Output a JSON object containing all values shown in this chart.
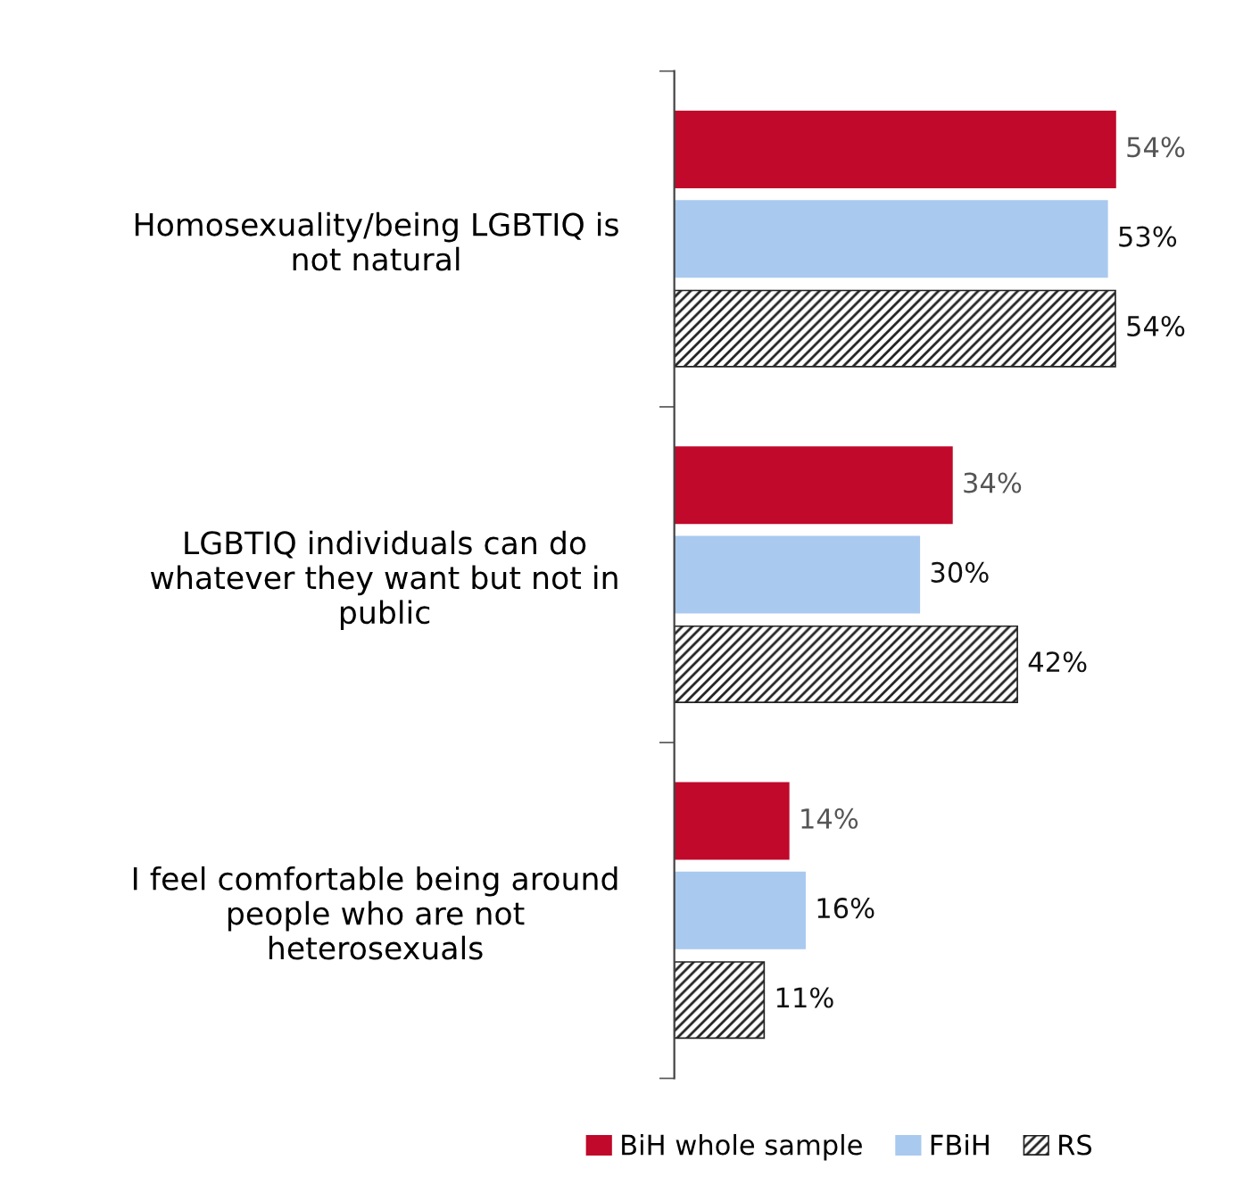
{
  "chart_data": {
    "type": "bar",
    "orientation": "horizontal",
    "categories": [
      "Homosexuality/being LGBTIQ is not natural",
      "LGBTIQ individuals can do whatever they want but not in public",
      "I feel comfortable being around people who are not heterosexuals"
    ],
    "series": [
      {
        "name": "BiH whole sample",
        "color": "#c0092b",
        "values": [
          54,
          34,
          14
        ],
        "value_labels": [
          "54%",
          "34%",
          "14%"
        ]
      },
      {
        "name": "FBiH",
        "color": "#a9c9ef",
        "values": [
          53,
          30,
          16
        ],
        "value_labels": [
          "53%",
          "30%",
          "16%"
        ]
      },
      {
        "name": "RS",
        "color": "#222222",
        "values": [
          54,
          42,
          11
        ],
        "value_labels": [
          "54%",
          "42%",
          "11%"
        ]
      }
    ],
    "tick_labels": "y",
    "grid": false,
    "legend": "bottom"
  }
}
